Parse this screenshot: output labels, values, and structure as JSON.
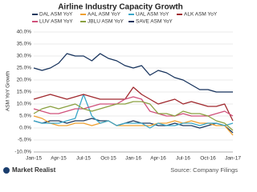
{
  "chart_data": {
    "type": "line",
    "title": "Airline Industry Capacity Growth",
    "y_label": "ASM YoY Growth",
    "source": "Source: Company Filings",
    "brand": "Market Realist",
    "categories": [
      "Jan-15",
      null,
      null,
      "Apr-15",
      null,
      null,
      "Jul-15",
      null,
      null,
      "Oct-15",
      null,
      null,
      "Jan-16",
      null,
      null,
      "Apr-16",
      null,
      null,
      "Jul-16",
      null,
      null,
      "Oct-16",
      null,
      null,
      "Jan-17"
    ],
    "ylim": [
      -10,
      40
    ],
    "yticks": [
      {
        "value": -10,
        "label": "-10.0%"
      },
      {
        "value": -5,
        "label": "-5.0%"
      },
      {
        "value": 0,
        "label": "0.0%"
      },
      {
        "value": 5,
        "label": "5.0%"
      },
      {
        "value": 10,
        "label": "10.0%"
      },
      {
        "value": 15,
        "label": "15.0%"
      },
      {
        "value": 20,
        "label": "20.0%"
      },
      {
        "value": 25,
        "label": "25.0%"
      },
      {
        "value": 30,
        "label": "30.0%"
      },
      {
        "value": 35,
        "label": "35.0%"
      },
      {
        "value": 40,
        "label": "40.0%"
      }
    ],
    "grid": true,
    "series": [
      {
        "name": "DAL ASM YoY",
        "color": "#1f3a5f",
        "values": [
          3,
          2,
          3,
          3,
          2,
          3,
          3,
          4,
          3,
          3,
          1,
          2,
          3,
          2,
          2,
          1,
          1,
          2,
          1,
          1,
          0,
          1,
          2,
          1,
          -2
        ]
      },
      {
        "name": "AAL ASM YoY",
        "color": "#f0a030",
        "values": [
          5,
          4,
          2,
          1,
          1,
          2,
          2,
          1,
          2,
          3,
          1,
          1,
          1,
          1,
          1,
          2,
          2,
          3,
          2,
          3,
          2,
          2,
          1,
          1,
          -3
        ]
      },
      {
        "name": "UAL ASM YoY",
        "color": "#3aa6c8",
        "values": [
          3,
          2,
          2,
          2,
          3,
          4,
          14,
          5,
          2,
          3,
          1,
          2,
          2,
          2,
          0,
          2,
          1,
          1,
          2,
          2,
          1,
          2,
          2,
          1,
          2
        ]
      },
      {
        "name": "ALK ASM YoY",
        "color": "#a0282d",
        "values": [
          12,
          13,
          14,
          13,
          12,
          13,
          14,
          13,
          12,
          12,
          12,
          12,
          17,
          14,
          12,
          10,
          11,
          12,
          10,
          11,
          10,
          9,
          9,
          10,
          3
        ]
      },
      {
        "name": "LUV ASM YoY",
        "color": "#d0507a",
        "values": [
          8,
          7,
          6,
          6,
          7,
          8,
          8,
          9,
          10,
          10,
          10,
          12,
          13,
          12,
          7,
          6,
          5,
          5,
          6,
          5,
          5,
          5,
          6,
          7,
          5
        ]
      },
      {
        "name": "JBLU ASM YoY",
        "color": "#8aa040",
        "values": [
          6,
          8,
          9,
          8,
          9,
          10,
          8,
          7,
          8,
          9,
          10,
          10,
          11,
          11,
          10,
          6,
          6,
          5,
          7,
          6,
          6,
          5,
          3,
          2,
          -1
        ]
      },
      {
        "name": "SAVE ASM YoY",
        "color": "#16325c",
        "values": [
          25,
          24,
          25,
          27,
          31,
          30,
          30,
          28,
          31,
          29,
          28,
          26,
          25,
          26,
          22,
          24,
          23,
          21,
          20,
          18,
          16,
          16,
          15,
          15,
          15
        ]
      }
    ]
  }
}
